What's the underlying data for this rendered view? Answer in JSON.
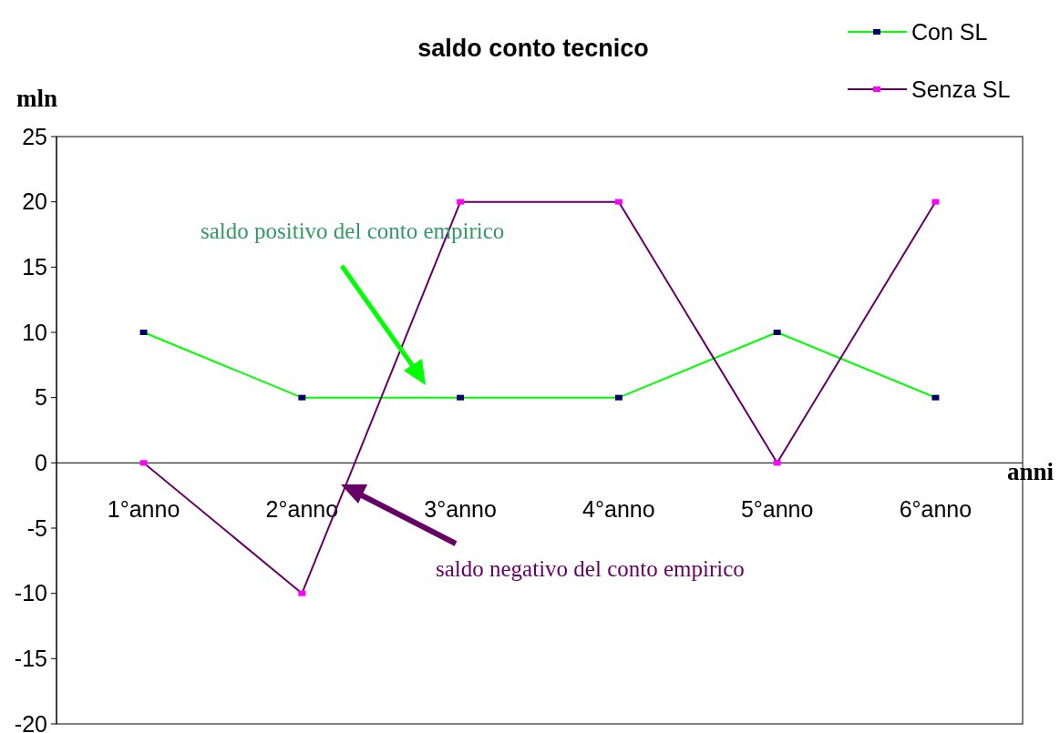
{
  "chart_data": {
    "type": "line",
    "title": "saldo conto tecnico",
    "xlabel": "anni",
    "ylabel": "mln",
    "categories": [
      "1°anno",
      "2°anno",
      "3°anno",
      "4°anno",
      "5°anno",
      "6°anno"
    ],
    "series": [
      {
        "name": "Con SL",
        "color": "#00ff00",
        "values": [
          10,
          5,
          5,
          5,
          10,
          5
        ]
      },
      {
        "name": "Senza SL",
        "color": "#660066",
        "values": [
          0,
          -10,
          20,
          20,
          0,
          20
        ]
      }
    ],
    "ylim": [
      -20,
      25
    ],
    "yticks": [
      -20,
      -15,
      -10,
      -5,
      0,
      5,
      10,
      15,
      20,
      25
    ],
    "annotations": [
      "saldo positivo del conto empirico",
      "saldo negativo del conto empirico"
    ],
    "grid": false,
    "legend": "top right",
    "marker": "square",
    "line_style": "solid"
  }
}
